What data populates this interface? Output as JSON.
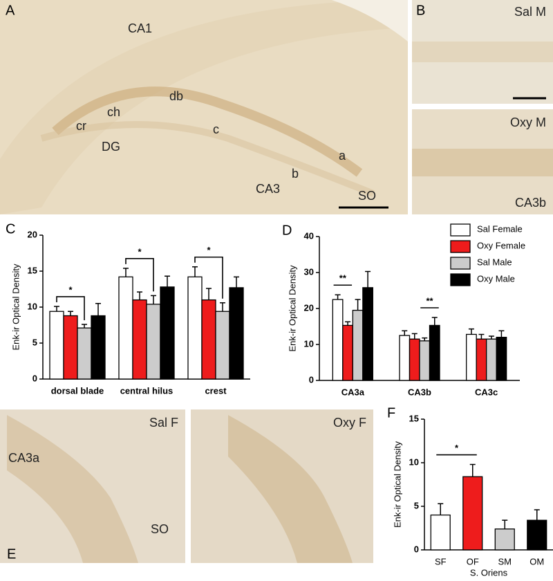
{
  "images": [
    {
      "panel": "A",
      "labels": [
        "CA1",
        "db",
        "ch",
        "cr",
        "c",
        "DG",
        "a",
        "b",
        "CA3",
        "SO"
      ]
    },
    {
      "panel": "B",
      "labels": [
        "Sal M"
      ]
    },
    {
      "labels": [
        "Oxy M",
        "CA3b"
      ]
    },
    {
      "panel": "E",
      "labels": [
        "Sal F",
        "CA3a",
        "SO"
      ]
    },
    {
      "labels": [
        "Oxy F"
      ]
    }
  ],
  "chart_data": [
    {
      "type": "bar",
      "panel": "C",
      "ylabel": "Enk-ir Optical Density",
      "categories": [
        "dorsal blade",
        "central hilus",
        "crest"
      ],
      "series": [
        {
          "color": "#ffffff",
          "values": [
            9.4,
            14.2,
            14.2
          ],
          "errors": [
            0.7,
            1.2,
            1.4
          ]
        },
        {
          "color": "#ee1c1c",
          "values": [
            8.8,
            11.0,
            11.0
          ],
          "errors": [
            0.6,
            1.1,
            1.6
          ]
        },
        {
          "color": "#cccccc",
          "values": [
            7.1,
            10.4,
            9.4
          ],
          "errors": [
            0.5,
            1.2,
            1.2
          ]
        },
        {
          "color": "#000000",
          "values": [
            8.8,
            12.8,
            12.7
          ],
          "errors": [
            1.7,
            1.5,
            1.5
          ]
        }
      ],
      "ylim": [
        0,
        20
      ],
      "yticks": [
        0,
        5,
        10,
        15,
        20
      ],
      "annotations": [
        {
          "text": "*",
          "category": 0,
          "from": 0,
          "to": 2,
          "style": "bracket"
        },
        {
          "text": "*",
          "category": 1,
          "from": 0,
          "to": 2,
          "style": "bracket"
        },
        {
          "text": "*",
          "category": 2,
          "from": 0,
          "to": 2,
          "style": "bracket"
        }
      ]
    },
    {
      "type": "bar",
      "panel": "D",
      "ylabel": "Enk-ir Optical Density",
      "categories": [
        "CA3a",
        "CA3b",
        "CA3c"
      ],
      "series": [
        {
          "name": "Sal Female",
          "color": "#ffffff",
          "values": [
            22.5,
            12.5,
            12.8
          ],
          "errors": [
            1.3,
            1.3,
            1.5
          ]
        },
        {
          "name": "Oxy Female",
          "color": "#ee1c1c",
          "values": [
            15.3,
            11.5,
            11.5
          ],
          "errors": [
            1.0,
            1.5,
            1.3
          ]
        },
        {
          "name": "Sal Male",
          "color": "#cccccc",
          "values": [
            19.5,
            11.0,
            11.5
          ],
          "errors": [
            3.0,
            0.8,
            0.8
          ]
        },
        {
          "name": "Oxy Male",
          "color": "#000000",
          "values": [
            25.8,
            15.3,
            12.0
          ],
          "errors": [
            4.5,
            2.2,
            1.8
          ]
        }
      ],
      "ylim": [
        0,
        40
      ],
      "yticks": [
        0,
        10,
        20,
        30,
        40
      ],
      "legend": "upper right",
      "annotations": [
        {
          "text": "**",
          "category": 0,
          "from": 0,
          "to": 1,
          "style": "line"
        },
        {
          "text": "**",
          "category": 1,
          "from": 2,
          "to": 3,
          "style": "line"
        }
      ]
    },
    {
      "type": "bar",
      "panel": "F",
      "ylabel": "Enk-ir Optical Density",
      "xlabel": "S. Oriens",
      "categories": [
        "SF",
        "OF",
        "SM",
        "OM"
      ],
      "values": [
        4.0,
        8.4,
        2.4,
        3.4
      ],
      "errors": [
        1.3,
        1.4,
        1.0,
        1.2
      ],
      "colors": [
        "#ffffff",
        "#ee1c1c",
        "#cccccc",
        "#000000"
      ],
      "ylim": [
        0,
        15
      ],
      "yticks": [
        0,
        5,
        10,
        15
      ],
      "annotations": [
        {
          "text": "*",
          "from": 0,
          "to": 1,
          "style": "line"
        }
      ]
    }
  ]
}
